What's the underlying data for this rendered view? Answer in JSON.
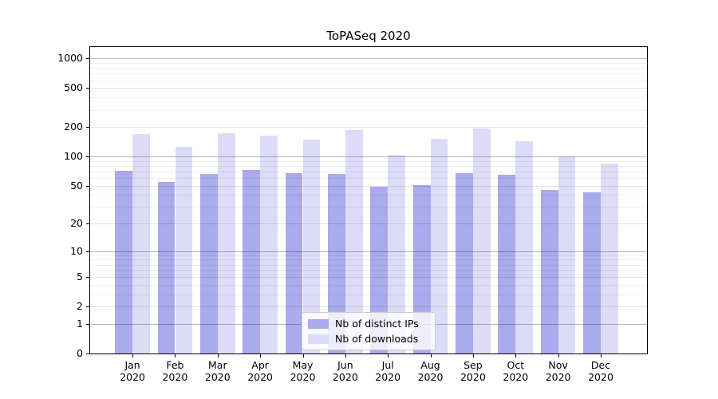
{
  "chart_data": {
    "type": "bar",
    "title": "ToPASeq 2020",
    "x_tick_labels_line1": [
      "Jan",
      "Feb",
      "Mar",
      "Apr",
      "May",
      "Jun",
      "Jul",
      "Aug",
      "Sep",
      "Oct",
      "Nov",
      "Dec"
    ],
    "x_tick_labels_line2": "2020",
    "y_scale": "log1p",
    "y_ticks": [
      0,
      1,
      2,
      5,
      10,
      20,
      50,
      100,
      200,
      500,
      1000
    ],
    "ylim": [
      0,
      1300
    ],
    "grid": "on",
    "legend_position": "lower-center-inside",
    "series": [
      {
        "name": "Nb of distinct IPs",
        "color": "#aaaaec",
        "values": [
          71,
          55,
          66,
          73,
          67,
          66,
          49,
          51,
          68,
          65,
          45,
          43
        ]
      },
      {
        "name": "Nb of downloads",
        "color": "#dcdcf7",
        "values": [
          170,
          126,
          174,
          164,
          148,
          187,
          105,
          152,
          193,
          143,
          100,
          84
        ]
      }
    ]
  }
}
